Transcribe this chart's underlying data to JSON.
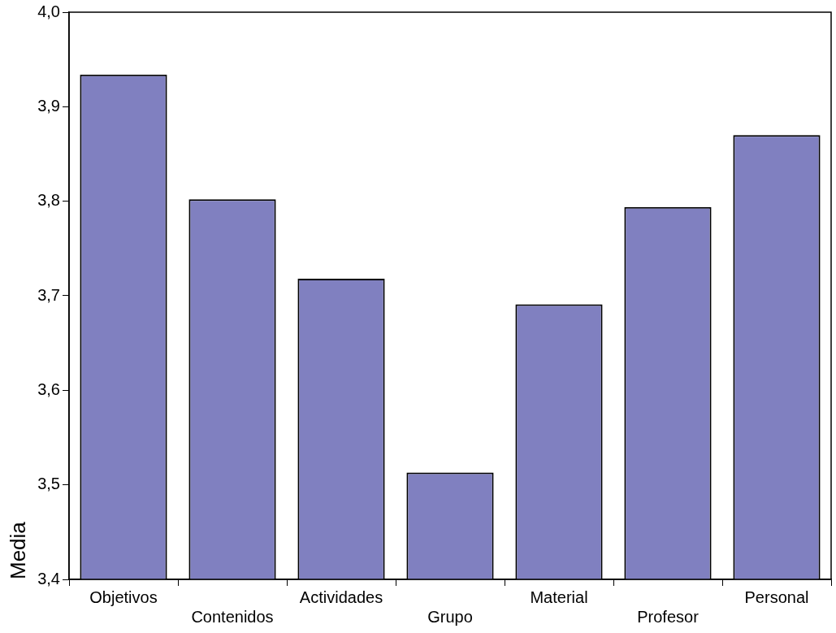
{
  "chart_data": {
    "type": "bar",
    "ylabel": "Media",
    "categories": [
      "Objetivos",
      "Contenidos",
      "Actividades",
      "Grupo",
      "Material",
      "Profesor",
      "Personal"
    ],
    "values": [
      3.934,
      3.802,
      3.718,
      3.513,
      3.691,
      3.794,
      3.87
    ],
    "color": "#8080c0",
    "ylim": [
      3.4,
      4.0
    ],
    "yticks": [
      {
        "value": 3.4,
        "label": "3,4"
      },
      {
        "value": 3.5,
        "label": "3,5"
      },
      {
        "value": 3.6,
        "label": "3,6"
      },
      {
        "value": 3.7,
        "label": "3,7"
      },
      {
        "value": 3.8,
        "label": "3,8"
      },
      {
        "value": 3.9,
        "label": "3,9"
      },
      {
        "value": 4.0,
        "label": "4,0"
      }
    ],
    "grid": false,
    "legend": false
  }
}
